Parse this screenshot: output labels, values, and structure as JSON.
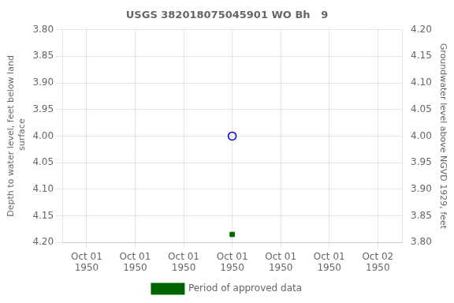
{
  "chart_data": {
    "type": "scatter",
    "title": "USGS 382018075045901 WO Bh   9",
    "x_label": null,
    "y_label": "Depth to water level, feet below land\n surface",
    "y2_label": "Groundwater level above NGVD 1929, feet",
    "categories": [
      "Oct 01\n1950",
      "Oct 01\n1950",
      "Oct 01\n1950",
      "Oct 01\n1950",
      "Oct 01\n1950",
      "Oct 01\n1950",
      "Oct 02\n1950"
    ],
    "series": [
      {
        "color": "#0000cc",
        "marker": "open_circle",
        "values": [
          null,
          null,
          null,
          4.0,
          null,
          null,
          null
        ]
      },
      {
        "name": "Period of approved data",
        "color": "#006400",
        "marker": "square",
        "values": [
          null,
          null,
          null,
          4.185,
          null,
          null,
          null
        ]
      }
    ],
    "ylim": [
      4.2,
      3.8
    ],
    "yticks": [
      {
        "value": 3.8,
        "label": "3.80"
      },
      {
        "value": 3.85,
        "label": "3.85"
      },
      {
        "value": 3.9,
        "label": "3.90"
      },
      {
        "value": 3.95,
        "label": "3.95"
      },
      {
        "value": 4.0,
        "label": "4.00"
      },
      {
        "value": 4.05,
        "label": "4.05"
      },
      {
        "value": 4.1,
        "label": "4.10"
      },
      {
        "value": 4.15,
        "label": "4.15"
      },
      {
        "value": 4.2,
        "label": "4.20"
      }
    ],
    "y2lim": [
      3.8,
      4.2
    ],
    "y2ticks": [
      {
        "value": 3.8,
        "label": "3.80"
      },
      {
        "value": 3.85,
        "label": "3.85"
      },
      {
        "value": 3.9,
        "label": "3.90"
      },
      {
        "value": 3.95,
        "label": "3.95"
      },
      {
        "value": 4.0,
        "label": "4.00"
      },
      {
        "value": 4.05,
        "label": "4.05"
      },
      {
        "value": 4.1,
        "label": "4.10"
      },
      {
        "value": 4.15,
        "label": "4.15"
      },
      {
        "value": 4.2,
        "label": "4.20"
      }
    ],
    "grid": true,
    "legend": "bottom"
  }
}
